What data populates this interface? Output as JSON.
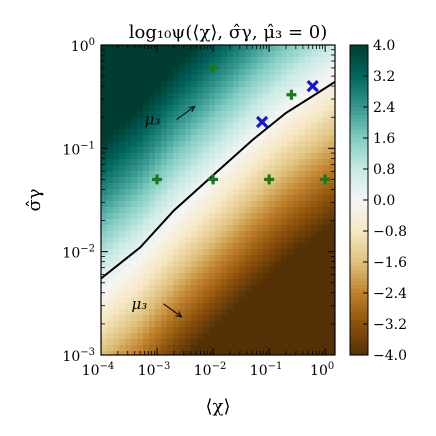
{
  "chart_data": {
    "type": "heatmap",
    "title": "log₁₀ψ(⟨χ⟩, σ̂γ, μ̂₃ = 0)",
    "xlabel": "⟨χ⟩",
    "ylabel": "σ̂γ",
    "x_scale": "log",
    "y_scale": "log",
    "xlim": [
      0.0001,
      1.5
    ],
    "ylim": [
      0.001,
      1
    ],
    "x_tick_values": [
      0.0001,
      0.001,
      0.01,
      0.1,
      1
    ],
    "x_tick_labels": [
      {
        "base": "10",
        "exp": "−4"
      },
      {
        "base": "10",
        "exp": "−3"
      },
      {
        "base": "10",
        "exp": "−2"
      },
      {
        "base": "10",
        "exp": "−1"
      },
      {
        "base": "10",
        "exp": "0"
      }
    ],
    "y_tick_values": [
      0.001,
      0.01,
      0.1,
      1
    ],
    "y_tick_labels": [
      {
        "base": "10",
        "exp": "−3"
      },
      {
        "base": "10",
        "exp": "−2"
      },
      {
        "base": "10",
        "exp": "−1"
      },
      {
        "base": "10",
        "exp": "0"
      }
    ],
    "colorbar": {
      "min": -4.0,
      "max": 4.0,
      "colormap": "BrBG",
      "colors": [
        "#543005",
        "#8c510a",
        "#bf812d",
        "#dfc27d",
        "#f6e8c3",
        "#f5f5f5",
        "#c7eae5",
        "#80cdc1",
        "#35978f",
        "#01665e",
        "#003c30"
      ],
      "tick_labels": [
        "4.0",
        "3.2",
        "2.4",
        "1.6",
        "0.8",
        "0.0",
        "−0.8",
        "−1.6",
        "−2.4",
        "−3.2",
        "−4.0"
      ],
      "tick_values": [
        4.0,
        3.2,
        2.4,
        1.6,
        0.8,
        0.0,
        -0.8,
        -1.6,
        -2.4,
        -3.2,
        -4.0
      ]
    },
    "zero_contour": {
      "color": "#000000",
      "points": [
        [
          0.0001,
          0.0055
        ],
        [
          0.0005,
          0.011
        ],
        [
          0.002,
          0.025
        ],
        [
          0.01,
          0.055
        ],
        [
          0.05,
          0.12
        ],
        [
          0.2,
          0.22
        ],
        [
          0.6,
          0.32
        ],
        [
          1.5,
          0.44
        ]
      ]
    },
    "series": [
      {
        "marker": "plus",
        "color": "#1a7a1a",
        "points": [
          [
            0.001,
            0.05
          ],
          [
            0.01,
            0.05
          ],
          [
            0.1,
            0.05
          ],
          [
            1.0,
            0.05
          ]
        ]
      },
      {
        "marker": "plus",
        "color": "#1a7a1a",
        "points": [
          [
            0.01,
            0.6
          ],
          [
            0.25,
            0.33
          ]
        ]
      },
      {
        "marker": "cross",
        "color": "#1414d2",
        "points": [
          [
            0.075,
            0.18
          ],
          [
            0.6,
            0.4
          ]
        ]
      }
    ],
    "annotations": [
      {
        "text": "μ₃",
        "direction": "increasing",
        "at": [
          0.0006,
          0.17
        ]
      },
      {
        "text": "μ₃",
        "direction": "decreasing",
        "at": [
          0.00035,
          0.0028
        ]
      }
    ]
  }
}
